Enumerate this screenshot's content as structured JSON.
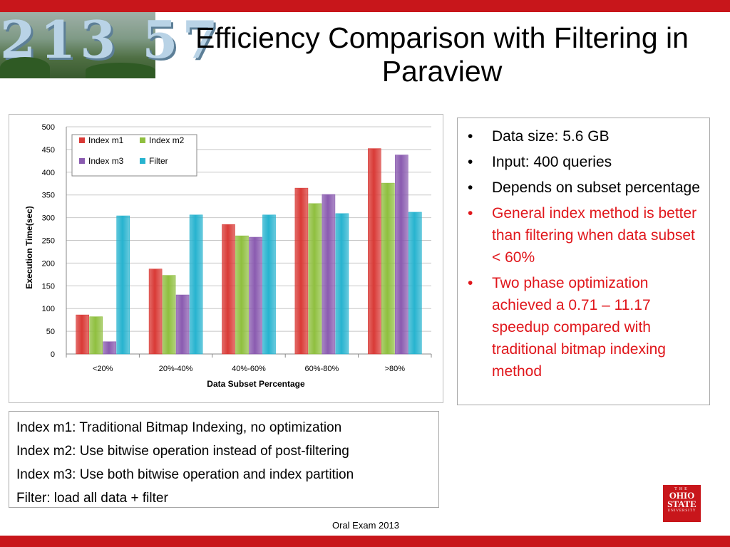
{
  "slide": {
    "title": "Efficiency Comparison with Filtering in Paraview",
    "footer": "Oral Exam 2013",
    "photo_text": "213 57",
    "accent_color": "#c8161b"
  },
  "logo": {
    "line1": "THE",
    "line2": "OHIO",
    "line3": "STATE",
    "line4": "UNIVERSITY"
  },
  "bullets": [
    {
      "text": "Data size: 5.6 GB",
      "color": "#000000"
    },
    {
      "text": "Input: 400 queries",
      "color": "#000000"
    },
    {
      "text": "Depends on subset percentage",
      "color": "#000000"
    },
    {
      "text": "General index method is better than filtering when data subset < 60%",
      "color": "#e0161b"
    },
    {
      "text": "Two phase optimization achieved a 0.71 – 11.17 speedup compared with traditional bitmap indexing method",
      "color": "#e0161b"
    }
  ],
  "bullet_symbol": "•",
  "legend_lines": [
    "Index m1: Traditional Bitmap Indexing, no optimization",
    "Index m2: Use bitwise operation instead of post-filtering",
    "Index m3: Use both bitwise operation and index partition",
    "Filter:  load all data + filter"
  ],
  "chart_data": {
    "type": "bar",
    "categories": [
      "<20%",
      "20%-40%",
      "40%-60%",
      "60%-80%",
      ">80%"
    ],
    "series": [
      {
        "name": "Index m1",
        "color": "#d93a36",
        "values": [
          86,
          187,
          285,
          365,
          452
        ]
      },
      {
        "name": "Index m2",
        "color": "#8fbf3f",
        "values": [
          82,
          173,
          260,
          331,
          376
        ]
      },
      {
        "name": "Index m3",
        "color": "#8a5bb0",
        "values": [
          27,
          130,
          257,
          351,
          438
        ]
      },
      {
        "name": "Filter",
        "color": "#27b3cf",
        "values": [
          304,
          306,
          306,
          309,
          312
        ]
      }
    ],
    "xlabel": "Data Subset Percentage",
    "ylabel": "Execution Time(sec)",
    "ylim": [
      0,
      500
    ],
    "yticks": [
      0,
      50,
      100,
      150,
      200,
      250,
      300,
      350,
      400,
      450,
      500
    ],
    "grid": true,
    "legend_position": "top-left"
  }
}
